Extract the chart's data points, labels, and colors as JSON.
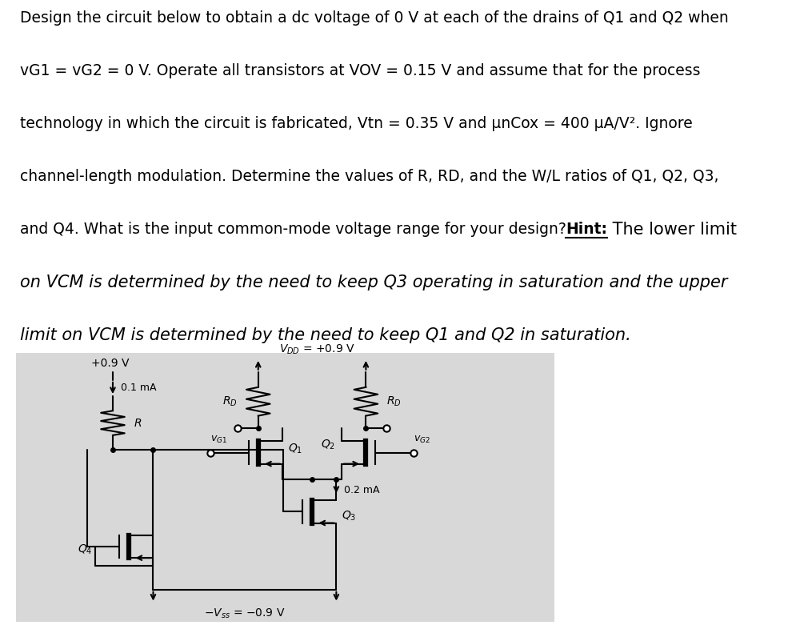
{
  "fig_bg": "#ffffff",
  "circuit_bg": "#d8d8d8",
  "line_color": "#000000",
  "text_lines": [
    {
      "text": "Design the circuit below to obtain a dc voltage of 0 V at each of the drains of Q1 and Q2 when",
      "style": "normal"
    },
    {
      "text": "vG1 = vG2 = 0 V. Operate all transistors at VOV = 0.15 V and assume that for the process",
      "style": "normal"
    },
    {
      "text": "technology in which the circuit is fabricated, Vtn = 0.35 V and μnCox = 400 μA/V². Ignore",
      "style": "normal"
    },
    {
      "text": "channel-length modulation. Determine the values of R, RD, and the W/L ratios of Q1, Q2, Q3,",
      "style": "normal"
    },
    {
      "text": "and Q4. What is the input common-mode voltage range for your design?",
      "style": "normal",
      "hint_after": " The lower limit"
    },
    {
      "text": "on VCM is determined by the need to keep Q3 operating in saturation and the upper",
      "style": "italic"
    },
    {
      "text": "limit on VCM is determined by the need to keep Q1 and Q2 in saturation.",
      "style": "italic"
    }
  ],
  "hint_text": "Hint:",
  "hint_suffix": " The lower limit",
  "vdd_label": "$V_{DD}$ = +0.9 V",
  "vss_label": "$-V_{ss}$ = −0.9 V",
  "rd_label": "$R_D$",
  "r_label": "$R$",
  "q1_label": "$Q_1$",
  "q2_label": "$Q_2$",
  "q3_label": "$Q_3$",
  "q4_label": "$Q_4$",
  "vg1_label": "$v_{G1}$",
  "vg2_label": "$v_{G2}$",
  "i_bias_label": "0.1 mA",
  "i_tail_label": "0.2 mA",
  "v_left_label": "+0.9 V",
  "lw": 1.5,
  "resistor_zigzag": 6
}
